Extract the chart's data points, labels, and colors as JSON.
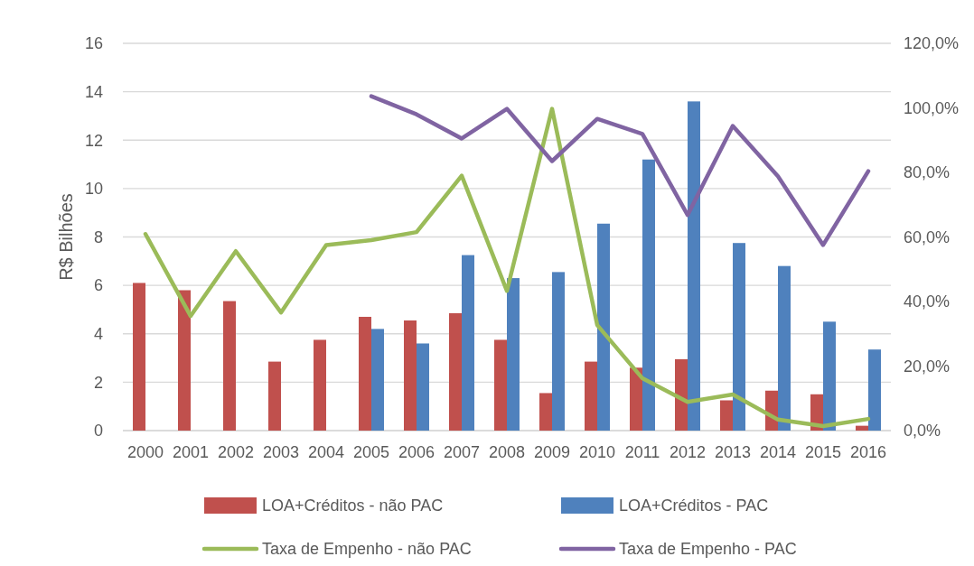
{
  "chart_data": {
    "type": "bar",
    "ylabel": "R$ Bilhões",
    "categories": [
      "2000",
      "2001",
      "2002",
      "2003",
      "2004",
      "2005",
      "2006",
      "2007",
      "2008",
      "2009",
      "2010",
      "2011",
      "2012",
      "2013",
      "2014",
      "2015",
      "2016"
    ],
    "series": [
      {
        "name": "LOA+Créditos - não PAC",
        "color": "#c0504d",
        "values": [
          6.1,
          5.8,
          5.35,
          2.85,
          3.75,
          4.7,
          4.55,
          4.85,
          3.75,
          1.55,
          2.85,
          2.6,
          2.95,
          1.25,
          1.65,
          1.5,
          0.2
        ]
      },
      {
        "name": "LOA+Créditos - PAC",
        "color": "#4f81bd",
        "values": [
          null,
          null,
          null,
          null,
          null,
          4.2,
          3.6,
          7.25,
          6.3,
          6.55,
          8.55,
          11.2,
          13.6,
          7.75,
          6.8,
          4.5,
          3.35
        ]
      },
      {
        "name": "Taxa de Empenho - não PAC",
        "type": "line",
        "axis": "y2",
        "color": "#9bbb59",
        "values": [
          60.9,
          35.5,
          55.6,
          36.6,
          57.5,
          59,
          61.5,
          79,
          43.3,
          99.7,
          32.7,
          16.2,
          8.9,
          11.2,
          3.4,
          1.4,
          3.6
        ]
      },
      {
        "name": "Taxa de Empenho - PAC",
        "type": "line",
        "axis": "y2",
        "color": "#8064a2",
        "values": [
          null,
          null,
          null,
          null,
          null,
          103.6,
          98,
          90.5,
          99.7,
          83.5,
          96.6,
          91.9,
          66.8,
          94.4,
          78.8,
          57.5,
          80.4
        ]
      }
    ],
    "ylim": [
      0,
      16
    ],
    "yticks": [
      0,
      2,
      4,
      6,
      8,
      10,
      12,
      14,
      16
    ],
    "y2lim": [
      0,
      120
    ],
    "y2ticks": [
      {
        "value": 0,
        "label": "0,0%"
      },
      {
        "value": 20,
        "label": "20,0%"
      },
      {
        "value": 40,
        "label": "40,0%"
      },
      {
        "value": 60,
        "label": "60,0%"
      },
      {
        "value": 80,
        "label": "80,0%"
      },
      {
        "value": 100,
        "label": "100,0%"
      },
      {
        "value": 120,
        "label": "120,0%"
      }
    ],
    "grid": "y",
    "legend": "bottom",
    "marker": "none",
    "line_style": "solid"
  }
}
